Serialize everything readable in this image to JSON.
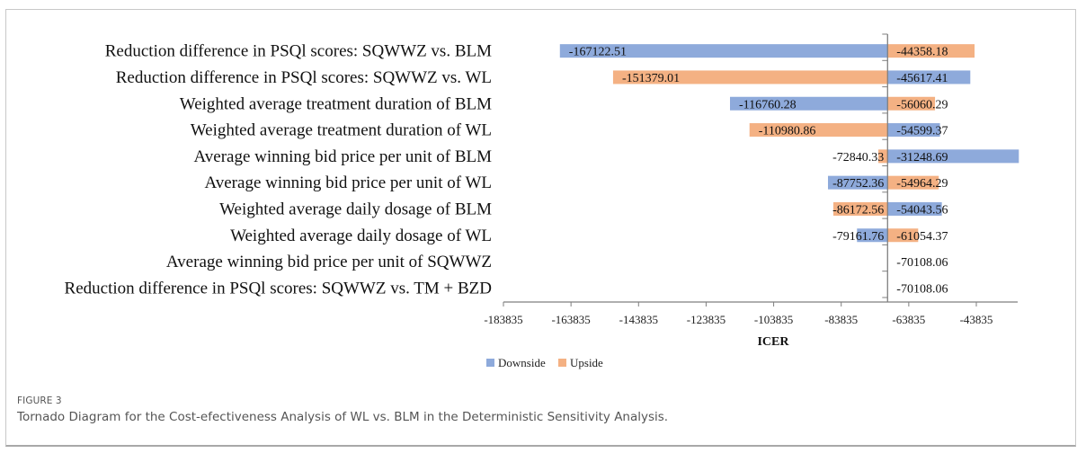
{
  "chart_data": {
    "type": "bar",
    "subtype": "tornado",
    "orientation": "horizontal",
    "title": "",
    "xlabel": "ICER",
    "ylabel": "",
    "base_value": -70108.06,
    "xlim": [
      -183835,
      -23835
    ],
    "x_ticks": [
      -183835,
      -163835,
      -143835,
      -123835,
      -103835,
      -83835,
      -63835,
      -43835
    ],
    "x_tick_labels": [
      "-183835",
      "-163835",
      "-143835",
      "-123835",
      "-103835",
      "-83835",
      "-63835",
      "-43835"
    ],
    "grid": false,
    "legend": {
      "placement": "bottom-left",
      "entries": [
        {
          "name": "Downside",
          "color": "#8eaadb"
        },
        {
          "name": "Upside",
          "color": "#f4b183"
        }
      ]
    },
    "categories": [
      "Reduction difference in PSQl scores: SQWWZ vs. BLM",
      "Reduction difference in PSQl scores: SQWWZ vs. WL",
      "Weighted average treatment duration of BLM",
      "Weighted average treatment duration of WL",
      "Average winning bid price per unit of BLM",
      "Average winning bid price per unit of WL",
      "Weighted average daily dosage of BLM",
      "Weighted average daily dosage of WL",
      "Average winning bid price per unit of SQWWZ",
      "Reduction difference in PSQl scores: SQWWZ vs. TM + BZD"
    ],
    "series": [
      {
        "name": "Downside",
        "color": "#8eaadb",
        "values": [
          -167122.51,
          -45617.41,
          -116760.28,
          -54599.37,
          -31248.69,
          -87752.36,
          -54043.56,
          -79161.76,
          -70108.06,
          -70108.06
        ],
        "labels": [
          "-167122.51",
          "-45617.41",
          "-116760.28",
          "-54599.37",
          "-31248.69",
          "-87752.36",
          "-54043.56",
          "-79161.76",
          "",
          ""
        ]
      },
      {
        "name": "Upside",
        "color": "#f4b183",
        "values": [
          -44358.18,
          -151379.01,
          -56060.29,
          -110980.86,
          -72840.33,
          -54964.29,
          -86172.56,
          -61054.37,
          -70108.06,
          -70108.06
        ],
        "labels": [
          "-44358.18",
          "-151379.01",
          "-56060.29",
          "-110980.86",
          "-72840.33",
          "-54964.29",
          "-86172.56",
          "-61054.37",
          "-70108.06",
          "-70108.06"
        ]
      }
    ]
  },
  "figure": {
    "label": "FIGURE 3",
    "caption": "Tornado Diagram for the Cost-efectiveness Analysis of WL vs. BLM in the Deterministic Sensitivity Analysis."
  }
}
